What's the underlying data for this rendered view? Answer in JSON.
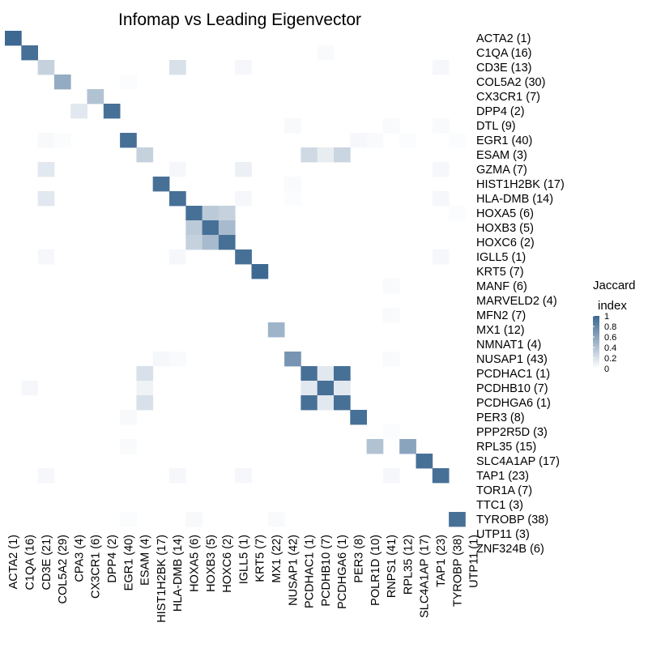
{
  "chart_data": {
    "type": "heatmap",
    "title": "Infomap vs Leading Eigenvector",
    "rows": [
      "ACTA2 (1)",
      "C1QA (16)",
      "CD3E (13)",
      "COL5A2 (30)",
      "CX3CR1 (7)",
      "DPP4 (2)",
      "DTL (9)",
      "EGR1 (40)",
      "ESAM (3)",
      "GZMA (7)",
      "HIST1H2BK (17)",
      "HLA-DMB (14)",
      "HOXA5 (6)",
      "HOXB3 (5)",
      "HOXC6 (2)",
      "IGLL5 (1)",
      "KRT5 (7)",
      "MANF (6)",
      "MARVELD2 (4)",
      "MFN2 (7)",
      "MX1 (12)",
      "NMNAT1 (4)",
      "NUSAP1 (43)",
      "PCDHAC1 (1)",
      "PCDHB10 (7)",
      "PCDHGA6 (1)",
      "PER3 (8)",
      "PPP2R5D (3)",
      "RPL35 (15)",
      "SLC4A1AP (17)",
      "TAP1 (23)",
      "TOR1A (7)",
      "TTC1 (3)",
      "TYROBP (38)",
      "UTP11 (3)",
      "ZNF324B (6)"
    ],
    "columns": [
      "ACTA2 (1)",
      "C1QA (16)",
      "CD3E (21)",
      "COL5A2 (29)",
      "CPA3 (4)",
      "CX3CR1 (6)",
      "DPP4 (2)",
      "EGR1 (40)",
      "ESAM (4)",
      "HIST1H2BK (17)",
      "HLA-DMB (14)",
      "HOXA5 (6)",
      "HOXB3 (5)",
      "HOXC6 (2)",
      "IGLL5 (1)",
      "KRT5 (7)",
      "MX1 (22)",
      "NUSAP1 (42)",
      "PCDHAC1 (1)",
      "PCDHB10 (7)",
      "PCDHGA6 (1)",
      "PER3 (8)",
      "POLR1D (10)",
      "RNPS1 (41)",
      "RPL35 (12)",
      "SLC4A1AP (17)",
      "TAP1 (23)",
      "TYROBP (38)",
      "UTP11 (1)"
    ],
    "cells": [
      [
        0,
        0,
        1.0
      ],
      [
        1,
        1,
        0.95
      ],
      [
        1,
        19,
        0.03
      ],
      [
        2,
        2,
        0.3
      ],
      [
        2,
        10,
        0.2
      ],
      [
        2,
        14,
        0.05
      ],
      [
        2,
        26,
        0.05
      ],
      [
        3,
        3,
        0.55
      ],
      [
        3,
        7,
        0.02
      ],
      [
        4,
        5,
        0.4
      ],
      [
        5,
        4,
        0.15
      ],
      [
        5,
        6,
        0.95
      ],
      [
        6,
        17,
        0.04
      ],
      [
        6,
        23,
        0.03
      ],
      [
        6,
        26,
        0.03
      ],
      [
        7,
        2,
        0.04
      ],
      [
        7,
        3,
        0.02
      ],
      [
        7,
        7,
        0.95
      ],
      [
        7,
        21,
        0.05
      ],
      [
        7,
        22,
        0.03
      ],
      [
        7,
        24,
        0.02
      ],
      [
        7,
        27,
        0.02
      ],
      [
        8,
        8,
        0.3
      ],
      [
        8,
        18,
        0.25
      ],
      [
        8,
        19,
        0.12
      ],
      [
        8,
        20,
        0.28
      ],
      [
        9,
        2,
        0.15
      ],
      [
        9,
        10,
        0.05
      ],
      [
        9,
        14,
        0.1
      ],
      [
        9,
        26,
        0.05
      ],
      [
        10,
        9,
        0.95
      ],
      [
        10,
        17,
        0.03
      ],
      [
        11,
        2,
        0.15
      ],
      [
        11,
        10,
        0.95
      ],
      [
        11,
        14,
        0.05
      ],
      [
        11,
        17,
        0.02
      ],
      [
        11,
        26,
        0.05
      ],
      [
        12,
        11,
        0.95
      ],
      [
        12,
        12,
        0.35
      ],
      [
        12,
        13,
        0.3
      ],
      [
        12,
        27,
        0.02
      ],
      [
        13,
        11,
        0.35
      ],
      [
        13,
        12,
        0.95
      ],
      [
        13,
        13,
        0.45
      ],
      [
        14,
        11,
        0.3
      ],
      [
        14,
        12,
        0.45
      ],
      [
        14,
        13,
        0.95
      ],
      [
        15,
        2,
        0.05
      ],
      [
        15,
        10,
        0.05
      ],
      [
        15,
        14,
        0.95
      ],
      [
        15,
        26,
        0.05
      ],
      [
        16,
        15,
        1.0
      ],
      [
        17,
        23,
        0.03
      ],
      [
        19,
        23,
        0.03
      ],
      [
        20,
        16,
        0.5
      ],
      [
        22,
        9,
        0.05
      ],
      [
        22,
        10,
        0.03
      ],
      [
        22,
        17,
        0.7
      ],
      [
        22,
        23,
        0.03
      ],
      [
        23,
        8,
        0.2
      ],
      [
        23,
        18,
        0.95
      ],
      [
        23,
        19,
        0.15
      ],
      [
        23,
        20,
        0.95
      ],
      [
        24,
        1,
        0.05
      ],
      [
        24,
        8,
        0.08
      ],
      [
        24,
        18,
        0.15
      ],
      [
        24,
        19,
        0.95
      ],
      [
        24,
        20,
        0.15
      ],
      [
        25,
        8,
        0.2
      ],
      [
        25,
        18,
        0.95
      ],
      [
        25,
        19,
        0.15
      ],
      [
        25,
        20,
        0.95
      ],
      [
        26,
        7,
        0.04
      ],
      [
        26,
        21,
        0.95
      ],
      [
        27,
        23,
        0.02
      ],
      [
        28,
        7,
        0.03
      ],
      [
        28,
        22,
        0.4
      ],
      [
        28,
        24,
        0.6
      ],
      [
        29,
        25,
        0.95
      ],
      [
        30,
        2,
        0.05
      ],
      [
        30,
        10,
        0.05
      ],
      [
        30,
        14,
        0.05
      ],
      [
        30,
        23,
        0.05
      ],
      [
        30,
        26,
        0.95
      ],
      [
        33,
        7,
        0.02
      ],
      [
        33,
        11,
        0.04
      ],
      [
        33,
        16,
        0.03
      ],
      [
        33,
        27,
        0.95
      ]
    ],
    "legend": {
      "title_lines": [
        "Jaccard",
        "index"
      ],
      "ticks": [
        "1",
        "0.8",
        "0.6",
        "0.4",
        "0.2",
        "0"
      ],
      "tick_values": [
        1,
        0.8,
        0.6,
        0.4,
        0.2,
        0
      ],
      "placement": "right"
    },
    "colors": {
      "low": "#ffffff",
      "high": "#3d6892"
    }
  }
}
